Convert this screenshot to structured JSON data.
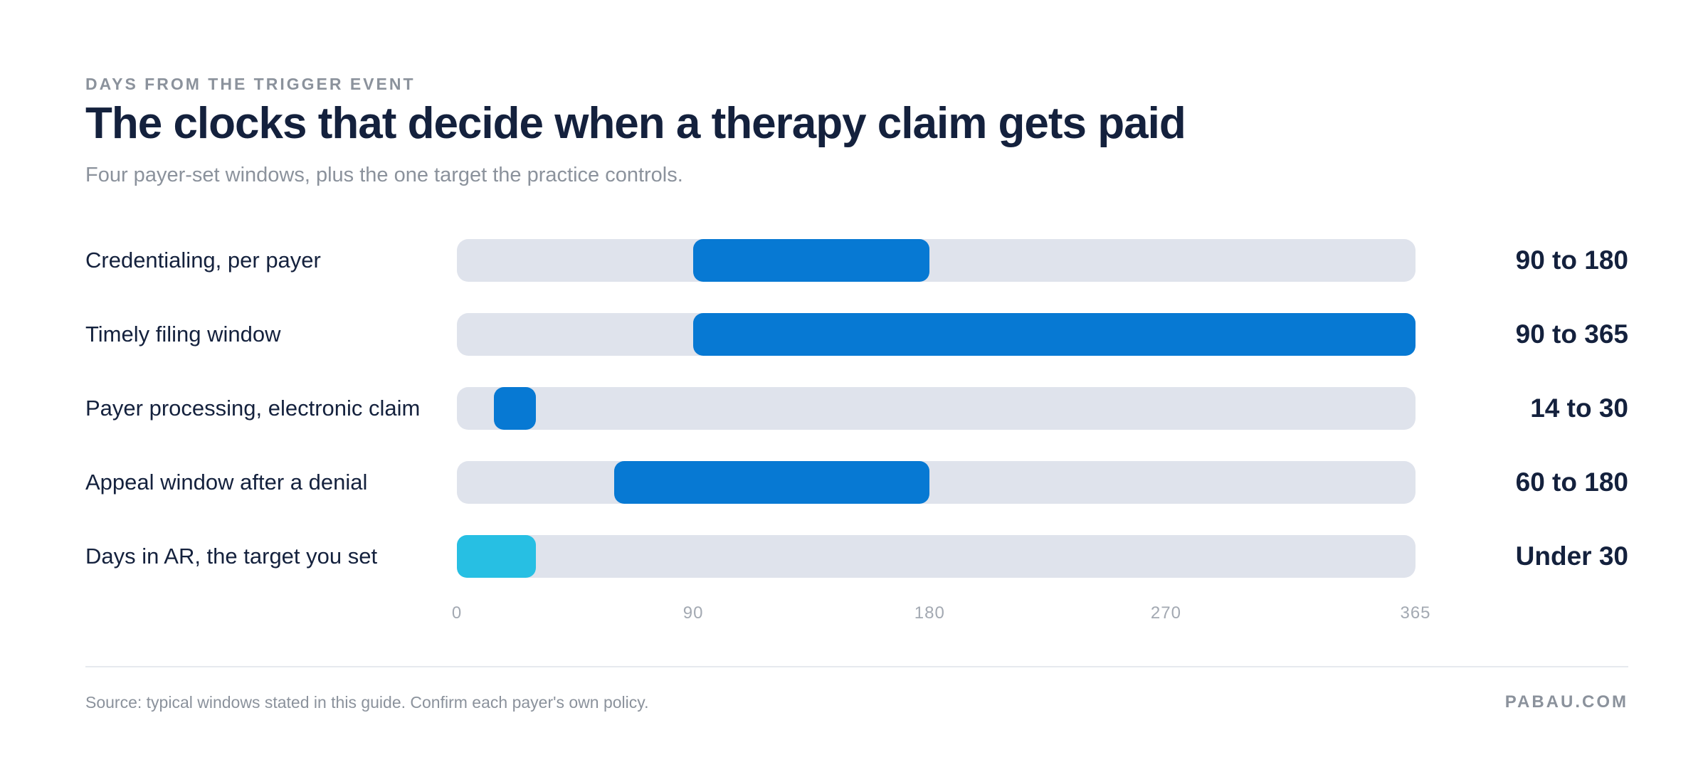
{
  "eyebrow": "DAYS FROM THE TRIGGER EVENT",
  "source": "Source: typical windows stated in this guide. Confirm each payer's own policy.",
  "brand": "PABAU.COM",
  "colors": {
    "primary_bar": "#0779d3",
    "target_bar": "#27bfe3",
    "track": "#dfe3ec"
  },
  "chart_data": {
    "type": "bar",
    "orientation": "horizontal-range",
    "title": "The clocks that decide when a therapy claim gets paid",
    "subtitle": "Four payer-set windows, plus the one target the practice controls.",
    "xlim": [
      0,
      365
    ],
    "xticks": [
      0,
      90,
      180,
      270,
      365
    ],
    "grid": false,
    "rows": [
      {
        "label": "Credentialing, per payer",
        "start": 90,
        "end": 180,
        "value_label": "90 to 180",
        "kind": "payer"
      },
      {
        "label": "Timely filing window",
        "start": 90,
        "end": 365,
        "value_label": "90 to 365",
        "kind": "payer"
      },
      {
        "label": "Payer processing, electronic claim",
        "start": 14,
        "end": 30,
        "value_label": "14 to 30",
        "kind": "payer"
      },
      {
        "label": "Appeal window after a denial",
        "start": 60,
        "end": 180,
        "value_label": "60 to 180",
        "kind": "payer"
      },
      {
        "label": "Days in AR, the target you set",
        "start": 0,
        "end": 30,
        "value_label": "Under 30",
        "kind": "target"
      }
    ]
  }
}
